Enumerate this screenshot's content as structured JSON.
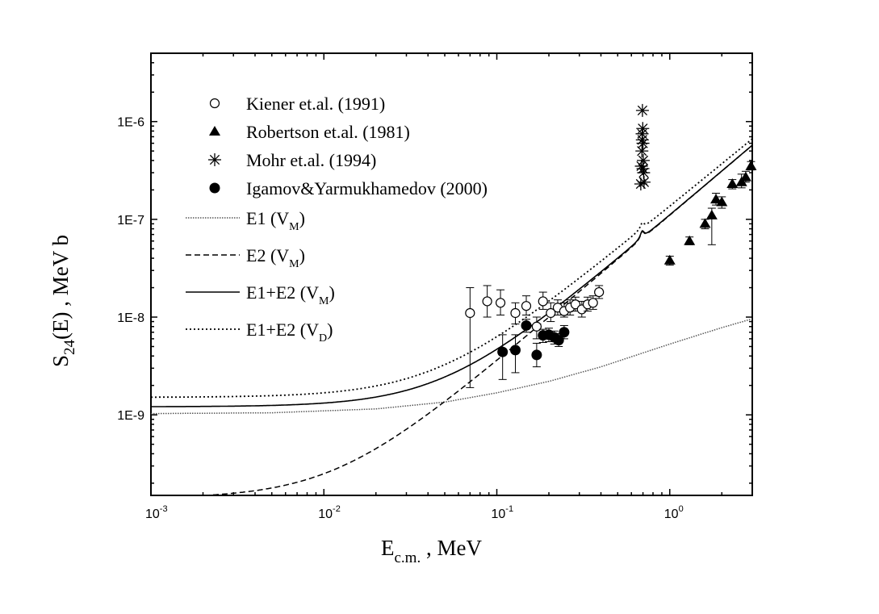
{
  "chart_data": {
    "type": "scatter",
    "xscale": "log",
    "yscale": "log",
    "xlim": [
      0.001,
      3.0
    ],
    "ylim": [
      1.5e-10,
      5e-06
    ],
    "xlabel": {
      "main": "E",
      "sub": "c.m.",
      "suffix": " ,  MeV"
    },
    "ylabel": {
      "main": "S",
      "sub": "24",
      "suffix": "(E) ,  MeV b"
    },
    "xticks": [
      {
        "value": 0.001,
        "base": "10",
        "exp": "-3"
      },
      {
        "value": 0.01,
        "base": "10",
        "exp": "-2"
      },
      {
        "value": 0.1,
        "base": "10",
        "exp": "-1"
      },
      {
        "value": 1,
        "base": "10",
        "exp": "0"
      }
    ],
    "yticks": [
      {
        "value": 1e-09,
        "label": "1E-9"
      },
      {
        "value": 1e-08,
        "label": "1E-8"
      },
      {
        "value": 1e-07,
        "label": "1E-7"
      },
      {
        "value": 1e-06,
        "label": "1E-6"
      }
    ],
    "series": [
      {
        "name": "Kiener et.al. (1991)",
        "marker": "open-circle",
        "points": [
          {
            "x": 0.07,
            "y": 1.1e-08,
            "err": [
              1.9e-09,
              2e-08
            ]
          },
          {
            "x": 0.088,
            "y": 1.45e-08,
            "err": [
              1e-08,
              2.1e-08
            ]
          },
          {
            "x": 0.105,
            "y": 1.4e-08,
            "err": [
              1.05e-08,
              1.9e-08
            ]
          },
          {
            "x": 0.128,
            "y": 1.1e-08,
            "err": [
              8.5e-09,
              1.4e-08
            ]
          },
          {
            "x": 0.148,
            "y": 1.3e-08,
            "err": [
              1.05e-08,
              1.65e-08
            ]
          },
          {
            "x": 0.17,
            "y": 8e-09,
            "err": [
              6e-09,
              1e-08
            ]
          },
          {
            "x": 0.185,
            "y": 1.45e-08,
            "err": [
              1.2e-08,
              1.8e-08
            ]
          },
          {
            "x": 0.205,
            "y": 1.1e-08,
            "err": [
              9e-09,
              1.4e-08
            ]
          },
          {
            "x": 0.225,
            "y": 1.25e-08,
            "err": [
              1.05e-08,
              1.5e-08
            ]
          },
          {
            "x": 0.245,
            "y": 1.15e-08,
            "err": [
              1e-08,
              1.4e-08
            ]
          },
          {
            "x": 0.265,
            "y": 1.25e-08,
            "err": [
              1.05e-08,
              1.5e-08
            ]
          },
          {
            "x": 0.285,
            "y": 1.35e-08,
            "err": [
              1.15e-08,
              1.6e-08
            ]
          },
          {
            "x": 0.31,
            "y": 1.2e-08,
            "err": [
              1e-08,
              1.45e-08
            ]
          },
          {
            "x": 0.335,
            "y": 1.35e-08,
            "err": [
              1.15e-08,
              1.6e-08
            ]
          },
          {
            "x": 0.36,
            "y": 1.4e-08,
            "err": [
              1.2e-08,
              1.65e-08
            ]
          },
          {
            "x": 0.39,
            "y": 1.8e-08,
            "err": [
              1.55e-08,
              2.1e-08
            ]
          }
        ]
      },
      {
        "name": "Robertson et.al. (1981)",
        "marker": "filled-triangle",
        "points": [
          {
            "x": 1.0,
            "y": 3.8e-08,
            "err": [
              3.4e-08,
              4.2e-08
            ]
          },
          {
            "x": 1.3,
            "y": 6e-08,
            "err": [
              5.5e-08,
              6.6e-08
            ]
          },
          {
            "x": 1.6,
            "y": 9e-08,
            "err": [
              8e-08,
              1e-07
            ]
          },
          {
            "x": 1.75,
            "y": 1.1e-07,
            "err": [
              5.5e-08,
              1.3e-07
            ]
          },
          {
            "x": 1.85,
            "y": 1.6e-07,
            "err": [
              1.4e-07,
              1.85e-07
            ]
          },
          {
            "x": 2.0,
            "y": 1.5e-07,
            "err": [
              1.3e-07,
              1.7e-07
            ]
          },
          {
            "x": 2.3,
            "y": 2.3e-07,
            "err": [
              2.05e-07,
              2.55e-07
            ]
          },
          {
            "x": 2.6,
            "y": 2.4e-07,
            "err": [
              2.1e-07,
              2.9e-07
            ]
          },
          {
            "x": 2.75,
            "y": 2.7e-07,
            "err": [
              2.4e-07,
              3.1e-07
            ]
          },
          {
            "x": 2.95,
            "y": 3.5e-07,
            "err": [
              3.2e-07,
              3.9e-07
            ]
          }
        ]
      },
      {
        "name": "Mohr et.al. (1994)",
        "marker": "asterisk",
        "points": [
          {
            "x": 0.68,
            "y": 2.3e-07
          },
          {
            "x": 0.685,
            "y": 3.5e-07
          },
          {
            "x": 0.69,
            "y": 5e-07
          },
          {
            "x": 0.692,
            "y": 7.5e-07
          },
          {
            "x": 0.695,
            "y": 1.3e-06
          },
          {
            "x": 0.698,
            "y": 8.5e-07
          },
          {
            "x": 0.7,
            "y": 6e-07
          },
          {
            "x": 0.703,
            "y": 4e-07
          },
          {
            "x": 0.706,
            "y": 3e-07
          },
          {
            "x": 0.71,
            "y": 2.4e-07
          },
          {
            "x": 0.7,
            "y": 3.3e-07
          },
          {
            "x": 0.694,
            "y": 6.5e-07
          }
        ]
      },
      {
        "name": "Igamov&Yarmukhamedov (2000)",
        "marker": "filled-circle",
        "points": [
          {
            "x": 0.108,
            "y": 4.4e-09,
            "err": [
              2.3e-09,
              6.6e-09
            ]
          },
          {
            "x": 0.128,
            "y": 4.6e-09,
            "err": [
              2.7e-09,
              6.6e-09
            ]
          },
          {
            "x": 0.148,
            "y": 8.2e-09,
            "err": [
              7e-09,
              9.5e-09
            ]
          },
          {
            "x": 0.17,
            "y": 4.1e-09,
            "err": [
              3.1e-09,
              5.4e-09
            ]
          },
          {
            "x": 0.185,
            "y": 6.5e-09,
            "err": [
              5.5e-09,
              7.5e-09
            ]
          },
          {
            "x": 0.2,
            "y": 6.6e-09,
            "err": [
              5.6e-09,
              7.7e-09
            ]
          },
          {
            "x": 0.215,
            "y": 6.2e-09,
            "err": [
              5.3e-09,
              7.2e-09
            ]
          },
          {
            "x": 0.228,
            "y": 5.8e-09,
            "err": [
              5e-09,
              6.8e-09
            ]
          },
          {
            "x": 0.245,
            "y": 7e-09,
            "err": [
              6e-09,
              8.2e-09
            ]
          }
        ]
      },
      {
        "name": "E1",
        "potential": "M",
        "style": "dotted-gray",
        "curve": {
          "type": "log-interp",
          "points": [
            [
              0.001,
              1.03e-09
            ],
            [
              0.005,
              1.05e-09
            ],
            [
              0.02,
              1.15e-09
            ],
            [
              0.05,
              1.35e-09
            ],
            [
              0.1,
              1.68e-09
            ],
            [
              0.2,
              2.2e-09
            ],
            [
              0.4,
              3.1e-09
            ],
            [
              0.7,
              4.3e-09
            ],
            [
              1.0,
              5.3e-09
            ],
            [
              2.0,
              7.8e-09
            ],
            [
              3.0,
              9.6e-09
            ]
          ]
        }
      },
      {
        "name": "E2",
        "potential": "M",
        "style": "dashed",
        "curve": {
          "type": "resonance",
          "base": 1.3e-10,
          "a": 1.1e-07,
          "n": 1.5,
          "amp": 0.009,
          "er": 0.693,
          "gamma": 0.02,
          "rise": 2.28e-08,
          "m": 2.1,
          "from": 0.001,
          "to": 3.0,
          "xmin": 0.78,
          "peak": 1.3e-06
        }
      },
      {
        "name": "E1+E2",
        "potential": "M",
        "style": "solid",
        "curve": {
          "type": "resonance",
          "base": 1.2e-09,
          "a": 1.1e-07,
          "n": 1.5,
          "amp": 0.009,
          "er": 0.693,
          "gamma": 0.02,
          "rise": 2.7e-08,
          "m": 1.95,
          "from": 0.001,
          "to": 3.0,
          "xmin": 0.82,
          "peak": 1.3e-06
        }
      },
      {
        "name": "E1+E2",
        "potential": "D",
        "style": "dotted",
        "curve": {
          "type": "resonance",
          "base": 1.5e-09,
          "a": 1.35e-07,
          "n": 1.45,
          "amp": 0.009,
          "er": 0.693,
          "gamma": 0.02,
          "rise": 3.1e-08,
          "m": 1.85,
          "from": 0.001,
          "to": 3.0,
          "xmin": 0.82,
          "peak": 1.3e-06
        }
      }
    ],
    "legend_placement": "top-left"
  }
}
